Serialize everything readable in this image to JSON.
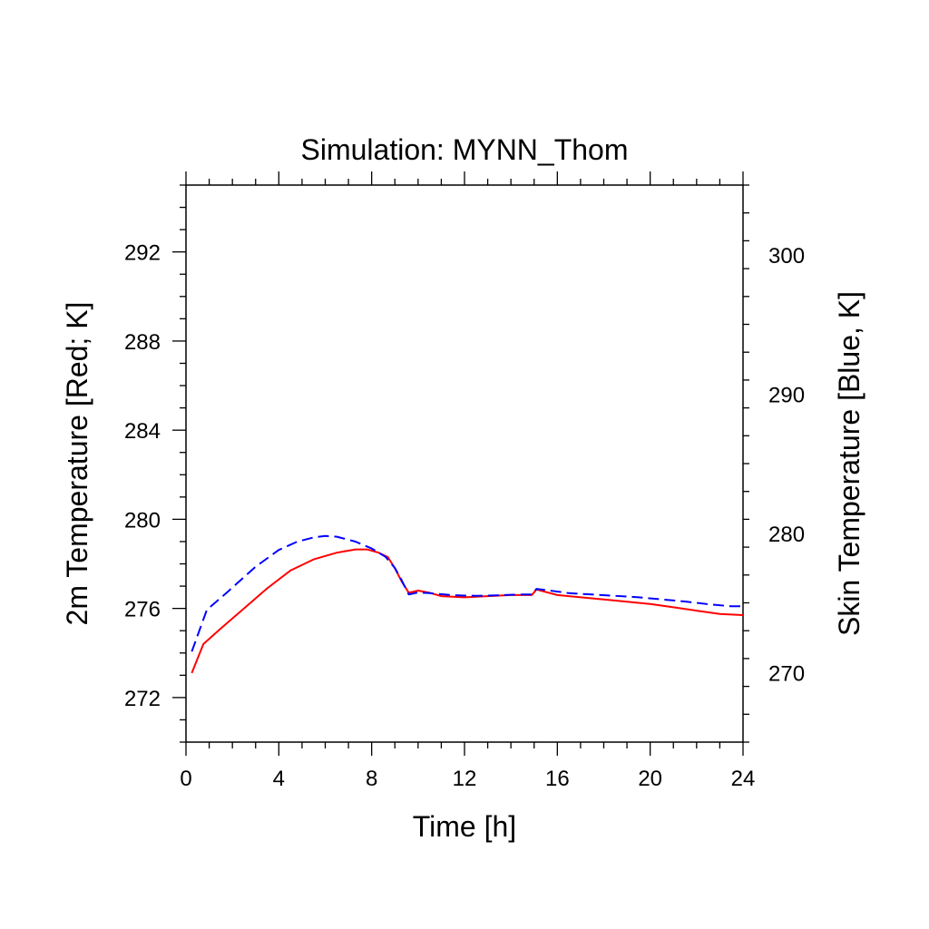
{
  "chart_data": {
    "type": "line",
    "title": "Simulation: MYNN_Thom",
    "xlabel": "Time [h]",
    "ylabel_left": "2m Temperature [Red; K]",
    "ylabel_right": "Skin Temperature [Blue, K]",
    "xlim": [
      0,
      24
    ],
    "ylim_left": [
      270,
      295
    ],
    "ylim_right": [
      265,
      305
    ],
    "x_ticks": [
      "0",
      "4",
      "8",
      "12",
      "16",
      "20",
      "24"
    ],
    "y_left_ticks": [
      "272",
      "276",
      "280",
      "284",
      "288",
      "292"
    ],
    "y_right_ticks": [
      "270",
      "280",
      "290",
      "300"
    ],
    "grid": false,
    "colors": {
      "red_series": "#ff0000",
      "blue_series": "#0000ff"
    },
    "series": [
      {
        "axis": "left",
        "line_style": "solid",
        "color": "#ff0000",
        "x": [
          0.25,
          0.75,
          1.5,
          2.5,
          3.5,
          4.5,
          5.5,
          6.5,
          7.3,
          7.8,
          8.3,
          8.7,
          9.0,
          9.3,
          9.6,
          10.0,
          10.5,
          11.0,
          12.0,
          13.0,
          14.0,
          14.9,
          15.1,
          16.0,
          17.0,
          18.0,
          19.0,
          20.0,
          21.0,
          22.0,
          23.0,
          24.0
        ],
        "y": [
          273.1,
          274.4,
          275.1,
          276.0,
          276.9,
          277.7,
          278.2,
          278.5,
          278.65,
          278.65,
          278.5,
          278.3,
          277.8,
          277.2,
          276.7,
          276.8,
          276.7,
          276.55,
          276.5,
          276.55,
          276.6,
          276.6,
          276.85,
          276.6,
          276.5,
          276.4,
          276.3,
          276.2,
          276.05,
          275.9,
          275.75,
          275.7
        ]
      },
      {
        "axis": "right",
        "line_style": "dashed",
        "color": "#0000ff",
        "x": [
          0.25,
          0.9,
          1.8,
          3.0,
          4.0,
          4.8,
          5.5,
          6.0,
          6.5,
          7.3,
          8.0,
          8.6,
          9.0,
          9.3,
          9.6,
          10.0,
          10.5,
          11.5,
          12.5,
          13.5,
          14.5,
          14.9,
          15.1,
          15.6,
          16.5,
          17.5,
          18.5,
          19.5,
          20.5,
          21.5,
          22.5,
          23.5,
          24.0
        ],
        "y": [
          271.5,
          274.5,
          275.8,
          277.6,
          278.8,
          279.4,
          279.7,
          279.8,
          279.75,
          279.4,
          278.9,
          278.3,
          277.5,
          276.6,
          275.6,
          275.75,
          275.7,
          275.55,
          275.5,
          275.55,
          275.6,
          275.6,
          276.0,
          275.9,
          275.7,
          275.6,
          275.5,
          275.4,
          275.25,
          275.1,
          274.9,
          274.75,
          274.75
        ]
      }
    ]
  }
}
